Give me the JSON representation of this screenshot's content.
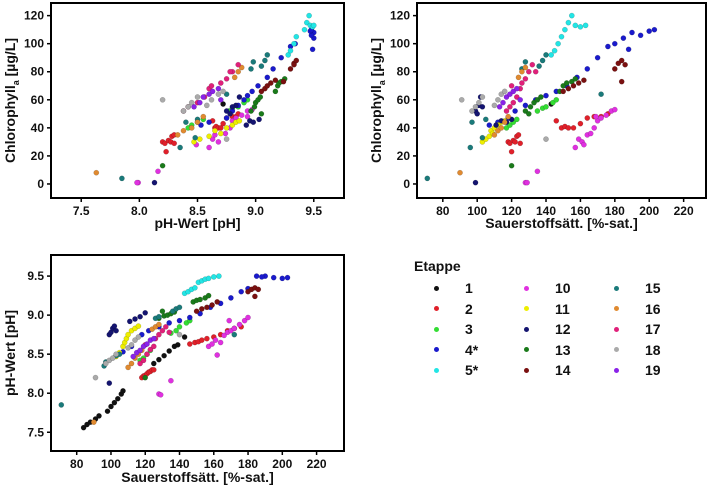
{
  "chart_data": [
    {
      "type": "scatter",
      "panel": "top-left",
      "x_variable": "ph",
      "y_variable": "chl",
      "xlabel": "pH-Wert [pH]",
      "ylabel": {
        "main": "Chlorophyll",
        "sub": "a",
        "unit": " [µg/L]"
      },
      "xlim": [
        7.24,
        9.76
      ],
      "ylim": [
        -10,
        129
      ],
      "xticks": [
        7.5,
        8.0,
        8.5,
        9.0,
        9.5
      ],
      "yticks": [
        0,
        20,
        40,
        60,
        80,
        100,
        120
      ],
      "grid": false
    },
    {
      "type": "scatter",
      "panel": "top-right",
      "x_variable": "o2",
      "y_variable": "chl",
      "xlabel": "Sauerstoffsätt. [%-sat.]",
      "ylabel": {
        "main": "Chlorophyll",
        "sub": "a",
        "unit": " [µg/L]"
      },
      "xlim": [
        65,
        233
      ],
      "ylim": [
        -10,
        129
      ],
      "xticks": [
        80,
        100,
        120,
        140,
        160,
        180,
        200,
        220
      ],
      "yticks": [
        0,
        20,
        40,
        60,
        80,
        100,
        120
      ],
      "grid": false
    },
    {
      "type": "scatter",
      "panel": "bottom-left",
      "x_variable": "o2",
      "y_variable": "ph",
      "xlabel": "Sauerstoffsätt. [%-sat.]",
      "ylabel": {
        "main": "pH-Wert [pH]",
        "sub": "",
        "unit": ""
      },
      "xlim": [
        65,
        236
      ],
      "ylim": [
        7.26,
        9.77
      ],
      "xticks": [
        80,
        100,
        120,
        140,
        160,
        180,
        200,
        220
      ],
      "yticks": [
        7.5,
        8.0,
        8.5,
        9.0,
        9.5
      ],
      "grid": false
    }
  ],
  "legend": {
    "title": "Etappe",
    "placement": "bottom-right"
  },
  "observation_fields": [
    "o2",
    "ph",
    "chl"
  ],
  "series": [
    {
      "name": "1",
      "color": "#111111",
      "points": [
        [
          84,
          7.56,
          null
        ],
        [
          86,
          7.6,
          null
        ],
        [
          88,
          7.63,
          null
        ],
        [
          91,
          7.67,
          null
        ],
        [
          93,
          7.71,
          null
        ],
        [
          98,
          7.77,
          null
        ],
        [
          100,
          7.83,
          null
        ],
        [
          102,
          7.88,
          null
        ],
        [
          104,
          7.93,
          null
        ],
        [
          106,
          7.99,
          null
        ],
        [
          107,
          8.03,
          null
        ],
        [
          125,
          8.38,
          null
        ],
        [
          128,
          8.43,
          null
        ],
        [
          131,
          8.48,
          null
        ],
        [
          134,
          8.54,
          null
        ],
        [
          137,
          8.6,
          null
        ],
        [
          139,
          8.62,
          null
        ],
        [
          143,
          8.72,
          57
        ]
      ]
    },
    {
      "name": "2",
      "color": "#e0202a",
      "points": [
        [
          118,
          8.2,
          30
        ],
        [
          119,
          8.22,
          29
        ],
        [
          120,
          8.23,
          23
        ],
        [
          121,
          8.25,
          31
        ],
        [
          122,
          8.27,
          30
        ],
        [
          123,
          8.28,
          34
        ],
        [
          124,
          8.3,
          35
        ],
        [
          125,
          8.3,
          29
        ],
        [
          146,
          8.63,
          45
        ],
        [
          149,
          8.65,
          40
        ],
        [
          151,
          8.66,
          41
        ],
        [
          153,
          8.68,
          40
        ],
        [
          156,
          8.7,
          40
        ],
        [
          160,
          8.72,
          43
        ],
        [
          164,
          8.75,
          47
        ],
        [
          168,
          8.8,
          48
        ],
        [
          172,
          8.83,
          48
        ],
        [
          176,
          8.85,
          50
        ]
      ]
    },
    {
      "name": "3",
      "color": "#33dd33",
      "points": [
        [
          117,
          8.42,
          40
        ],
        [
          119,
          8.45,
          42
        ],
        [
          121,
          8.5,
          44
        ],
        [
          123,
          8.55,
          46
        ],
        [
          135,
          8.77,
          52
        ],
        [
          138,
          8.8,
          54
        ],
        [
          140,
          8.85,
          55
        ],
        [
          144,
          8.9,
          58
        ],
        [
          146,
          8.93,
          60
        ]
      ]
    },
    {
      "name": "4*",
      "color": "#1a1acc",
      "points": [
        [
          107,
          8.53,
          42
        ],
        [
          112,
          8.6,
          44
        ],
        [
          118,
          8.75,
          47
        ],
        [
          122,
          8.8,
          52
        ],
        [
          128,
          8.85,
          56
        ],
        [
          134,
          8.9,
          60
        ],
        [
          140,
          8.93,
          63
        ],
        [
          146,
          8.97,
          66
        ],
        [
          152,
          9.02,
          70
        ],
        [
          158,
          9.1,
          76
        ],
        [
          164,
          9.15,
          82
        ],
        [
          170,
          9.22,
          90
        ],
        [
          176,
          9.3,
          98
        ],
        [
          180,
          9.34,
          100
        ],
        [
          185,
          9.5,
          104
        ],
        [
          190,
          9.5,
          108
        ],
        [
          195,
          9.48,
          106
        ],
        [
          200,
          9.47,
          109
        ],
        [
          203,
          9.48,
          110
        ],
        [
          188,
          9.49,
          96
        ]
      ]
    },
    {
      "name": "5*",
      "color": "#22e5e5",
      "points": [
        [
          143,
          9.28,
          92
        ],
        [
          145,
          9.3,
          95
        ],
        [
          147,
          9.33,
          100
        ],
        [
          149,
          9.35,
          105
        ],
        [
          151,
          9.42,
          110
        ],
        [
          153,
          9.44,
          115
        ],
        [
          155,
          9.46,
          120
        ],
        [
          157,
          9.47,
          113
        ],
        [
          160,
          9.49,
          112
        ],
        [
          163,
          9.5,
          113
        ]
      ]
    },
    {
      "name": "10",
      "color": "#e030e0",
      "points": [
        [
          128,
          7.99,
          1
        ],
        [
          129,
          7.98,
          1
        ],
        [
          135,
          8.16,
          9
        ],
        [
          157,
          8.6,
          26
        ],
        [
          159,
          8.63,
          32
        ],
        [
          161,
          8.68,
          30
        ],
        [
          162,
          8.49,
          28
        ],
        [
          164,
          8.65,
          35
        ],
        [
          166,
          8.74,
          36
        ],
        [
          168,
          8.78,
          40
        ],
        [
          170,
          8.8,
          45
        ],
        [
          172,
          8.83,
          47
        ],
        [
          175,
          8.88,
          49
        ],
        [
          178,
          8.93,
          52
        ],
        [
          180,
          8.97,
          53
        ],
        [
          169,
          8.93,
          48
        ]
      ]
    },
    {
      "name": "11",
      "color": "#eeee00",
      "points": [
        [
          103,
          8.47,
          30
        ],
        [
          105,
          8.52,
          32
        ],
        [
          107,
          8.6,
          34
        ],
        [
          108,
          8.65,
          38
        ],
        [
          109,
          8.7,
          36
        ],
        [
          110,
          8.75,
          40
        ],
        [
          112,
          8.8,
          42
        ],
        [
          114,
          8.83,
          44
        ],
        [
          116,
          8.86,
          45
        ]
      ]
    },
    {
      "name": "12",
      "color": "#141470",
      "points": [
        [
          99,
          8.13,
          1
        ],
        [
          99,
          8.75,
          52
        ],
        [
          100,
          8.78,
          50
        ],
        [
          101,
          8.83,
          56
        ],
        [
          102,
          8.86,
          62
        ],
        [
          103,
          8.8,
          55
        ],
        [
          111,
          8.92,
          42
        ],
        [
          114,
          8.95,
          45
        ],
        [
          117,
          8.98,
          44
        ],
        [
          120,
          9.03,
          46
        ]
      ]
    },
    {
      "name": "13",
      "color": "#1a7a1a",
      "points": [
        [
          120,
          8.2,
          13
        ],
        [
          128,
          8.96,
          52
        ],
        [
          130,
          9.05,
          50
        ],
        [
          131,
          8.99,
          55
        ],
        [
          133,
          9.0,
          58
        ],
        [
          135,
          9.02,
          60
        ],
        [
          137,
          9.04,
          62
        ],
        [
          148,
          9.17,
          66
        ],
        [
          150,
          9.19,
          70
        ],
        [
          152,
          9.2,
          72
        ],
        [
          155,
          9.22,
          73
        ],
        [
          157,
          9.25,
          75
        ]
      ]
    },
    {
      "name": "14",
      "color": "#7a1010",
      "points": [
        [
          150,
          9.05,
          66
        ],
        [
          153,
          9.08,
          68
        ],
        [
          156,
          9.1,
          70
        ],
        [
          159,
          9.13,
          72
        ],
        [
          162,
          9.17,
          74
        ],
        [
          180,
          9.3,
          82
        ],
        [
          182,
          9.33,
          86
        ],
        [
          184,
          9.35,
          88
        ],
        [
          186,
          9.33,
          85
        ],
        [
          184,
          9.24,
          73
        ]
      ]
    },
    {
      "name": "15",
      "color": "#1a7a7a",
      "points": [
        [
          71,
          7.85,
          4
        ],
        [
          96,
          8.35,
          26
        ],
        [
          97,
          8.4,
          44
        ],
        [
          103,
          8.48,
          33
        ],
        [
          105,
          8.5,
          46
        ],
        [
          126,
          8.96,
          82
        ],
        [
          128,
          8.98,
          87
        ],
        [
          136,
          9.05,
          84
        ],
        [
          138,
          9.08,
          88
        ],
        [
          140,
          9.1,
          92
        ],
        [
          172,
          8.75,
          64
        ]
      ]
    },
    {
      "name": "16",
      "color": "#e08a30",
      "points": [
        [
          90,
          7.63,
          8
        ],
        [
          110,
          8.33,
          35
        ],
        [
          112,
          8.38,
          38
        ],
        [
          114,
          8.45,
          40
        ],
        [
          116,
          8.5,
          44
        ],
        [
          118,
          8.55,
          48
        ],
        [
          124,
          8.82,
          76
        ],
        [
          126,
          8.85,
          80
        ],
        [
          128,
          8.88,
          83
        ]
      ]
    },
    {
      "name": "17",
      "color": "#e0207a",
      "points": [
        [
          117,
          8.38,
          52
        ],
        [
          119,
          8.42,
          55
        ],
        [
          121,
          8.5,
          58
        ],
        [
          123,
          8.56,
          62
        ],
        [
          125,
          8.6,
          68
        ],
        [
          126,
          8.7,
          72
        ],
        [
          128,
          8.75,
          75
        ],
        [
          130,
          8.8,
          80
        ],
        [
          132,
          8.85,
          85
        ],
        [
          134,
          8.78,
          80
        ],
        [
          120,
          8.62,
          70
        ]
      ]
    },
    {
      "name": "18",
      "color": "#aaaaaa",
      "points": [
        [
          91,
          8.2,
          60
        ],
        [
          97,
          8.38,
          52
        ],
        [
          99,
          8.42,
          55
        ],
        [
          101,
          8.45,
          58
        ],
        [
          103,
          8.5,
          62
        ],
        [
          110,
          8.58,
          56
        ],
        [
          112,
          8.62,
          60
        ],
        [
          114,
          8.68,
          64
        ],
        [
          116,
          8.72,
          66
        ],
        [
          140,
          8.75,
          32
        ]
      ]
    },
    {
      "name": "19",
      "color": "#8a22e8",
      "points": [
        [
          113,
          8.47,
          55
        ],
        [
          115,
          8.52,
          58
        ],
        [
          117,
          8.55,
          62
        ],
        [
          119,
          8.6,
          64
        ],
        [
          121,
          8.63,
          66
        ],
        [
          123,
          8.68,
          68
        ],
        [
          125,
          8.7,
          60
        ]
      ]
    }
  ]
}
